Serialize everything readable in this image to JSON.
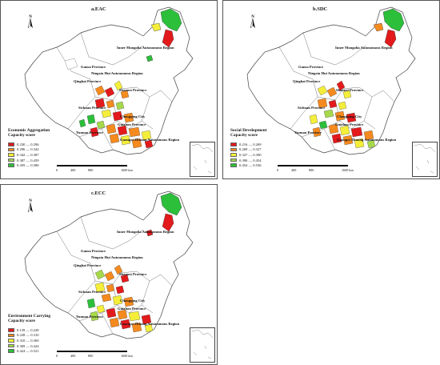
{
  "panels": [
    {
      "title": "a.EAC",
      "legend_title_1": "Economic Aggregation",
      "legend_title_2": "Capacity score",
      "legend": [
        {
          "range": "0.230 — 0.296",
          "color": "#e31a1c"
        },
        {
          "range": "0.296 — 0.342",
          "color": "#f58a1f"
        },
        {
          "range": "0.342 — 0.387",
          "color": "#f4ee3a"
        },
        {
          "range": "0.387 — 0.459",
          "color": "#a6d94a"
        },
        {
          "range": "0.459 — 0.580",
          "color": "#2cbf3a"
        }
      ]
    },
    {
      "title": "b.SDC",
      "legend_title_1": "Social Development",
      "legend_title_2": "Capacity score",
      "legend": [
        {
          "range": "0.216 — 0.269",
          "color": "#e31a1c"
        },
        {
          "range": "0.269 — 0.327",
          "color": "#f58a1f"
        },
        {
          "range": "0.327 — 0.390",
          "color": "#f4ee3a"
        },
        {
          "range": "0.390 — 0.454",
          "color": "#a6d94a"
        },
        {
          "range": "0.454 — 0.536",
          "color": "#2cbf3a"
        }
      ]
    },
    {
      "title": "c.ECC",
      "legend_title_1": "Environment Carrying",
      "legend_title_2": "Capacity score",
      "legend": [
        {
          "range": "0.139 — 0.228",
          "color": "#e31a1c"
        },
        {
          "range": "0.228 — 0.310",
          "color": "#f58a1f"
        },
        {
          "range": "0.310 — 0.369",
          "color": "#f4ee3a"
        },
        {
          "range": "0.369 — 0.424",
          "color": "#a6d94a"
        },
        {
          "range": "0.424 — 0.521",
          "color": "#2cbf3a"
        }
      ]
    }
  ],
  "province_labels": {
    "inner_mongolia": "Inner Mongolia Autonomous Region",
    "gansu": "Gansu Province",
    "ningxia": "Ningxia Hui Autonomous Region",
    "qinghai": "Qinghai Province",
    "shaanxi": "Shaanxi Province",
    "sichuan": "Sichuan Province",
    "chongqing": "Chongqing City",
    "guizhou": "Guizhou Province",
    "yunnan": "Yunnan Province",
    "guangxi": "Guangxi Zhuang Autonomous Region"
  },
  "scale_bar": {
    "t0": "0",
    "t1": "400",
    "t2": "800",
    "t3": "1600 km"
  },
  "north_arrow": {
    "label": "N"
  },
  "icons": {
    "north_arrow": "north-arrow-icon"
  }
}
